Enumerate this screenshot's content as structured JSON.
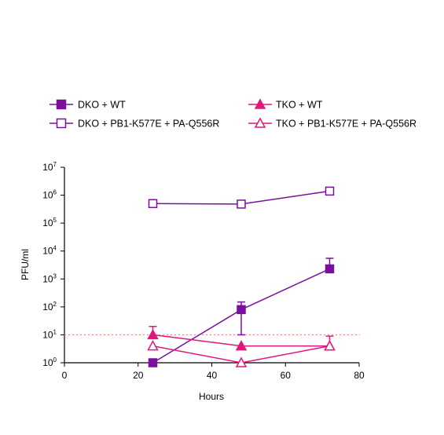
{
  "chart_data": {
    "type": "line",
    "xlabel": "Hours",
    "ylabel": "PFU/ml",
    "xlim": [
      0,
      80
    ],
    "xticks": [
      0,
      20,
      40,
      60,
      80
    ],
    "ylim_log10": [
      0,
      7
    ],
    "yscale": "log",
    "yticks": [
      {
        "base": "10",
        "exp": "0"
      },
      {
        "base": "10",
        "exp": "1"
      },
      {
        "base": "10",
        "exp": "2"
      },
      {
        "base": "10",
        "exp": "3"
      },
      {
        "base": "10",
        "exp": "4"
      },
      {
        "base": "10",
        "exp": "5"
      },
      {
        "base": "10",
        "exp": "6"
      },
      {
        "base": "10",
        "exp": "7"
      }
    ],
    "limit_of_detection": 10,
    "limit_color": "#f08080",
    "legend_position": "top",
    "series": [
      {
        "name": "DKO + WT",
        "color": "#7b0f9e",
        "marker": "square",
        "filled": true,
        "x": [
          24,
          48,
          72
        ],
        "y": [
          1,
          80,
          2300
        ],
        "err_upper": [
          null,
          150,
          5500
        ],
        "err_lower": [
          null,
          10,
          null
        ]
      },
      {
        "name": "DKO + PB1-K577E + PA-Q556R",
        "color": "#7b0f9e",
        "marker": "square",
        "filled": false,
        "x": [
          24,
          48,
          72
        ],
        "y": [
          500000,
          480000,
          1400000
        ],
        "err_upper": [
          null,
          null,
          null
        ],
        "err_lower": [
          null,
          null,
          null
        ]
      },
      {
        "name": "TKO + WT",
        "color": "#e0177d",
        "marker": "triangle",
        "filled": true,
        "x": [
          24,
          48,
          72
        ],
        "y": [
          10,
          4,
          4
        ],
        "err_upper": [
          20,
          null,
          9
        ],
        "err_lower": [
          null,
          null,
          null
        ]
      },
      {
        "name": "TKO + PB1-K577E + PA-Q556R",
        "color": "#e0177d",
        "marker": "triangle",
        "filled": false,
        "x": [
          24,
          48,
          72
        ],
        "y": [
          4,
          1,
          4
        ],
        "err_upper": [
          null,
          null,
          null
        ],
        "err_lower": [
          null,
          null,
          null
        ]
      }
    ]
  }
}
